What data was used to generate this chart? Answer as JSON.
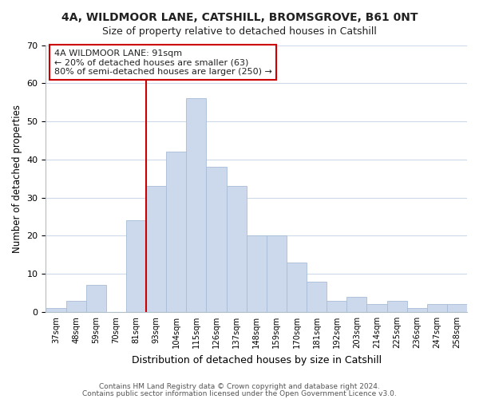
{
  "title": "4A, WILDMOOR LANE, CATSHILL, BROMSGROVE, B61 0NT",
  "subtitle": "Size of property relative to detached houses in Catshill",
  "xlabel": "Distribution of detached houses by size in Catshill",
  "ylabel": "Number of detached properties",
  "bar_color": "#ccd9ed",
  "bar_edge_color": "#a8bdd6",
  "bin_labels": [
    "37sqm",
    "48sqm",
    "59sqm",
    "70sqm",
    "81sqm",
    "93sqm",
    "104sqm",
    "115sqm",
    "126sqm",
    "137sqm",
    "148sqm",
    "159sqm",
    "170sqm",
    "181sqm",
    "192sqm",
    "203sqm",
    "214sqm",
    "225sqm",
    "236sqm",
    "247sqm",
    "258sqm"
  ],
  "bar_heights": [
    1,
    3,
    7,
    0,
    24,
    33,
    42,
    56,
    38,
    33,
    20,
    20,
    13,
    8,
    3,
    4,
    2,
    3,
    1,
    2,
    2
  ],
  "vline_color": "#cc0000",
  "ylim": [
    0,
    70
  ],
  "yticks": [
    0,
    10,
    20,
    30,
    40,
    50,
    60,
    70
  ],
  "annotation_lines": [
    "4A WILDMOOR LANE: 91sqm",
    "← 20% of detached houses are smaller (63)",
    "80% of semi-detached houses are larger (250) →"
  ],
  "footer1": "Contains HM Land Registry data © Crown copyright and database right 2024.",
  "footer2": "Contains public sector information licensed under the Open Government Licence v3.0.",
  "background_color": "#ffffff",
  "grid_color": "#ccdaec"
}
